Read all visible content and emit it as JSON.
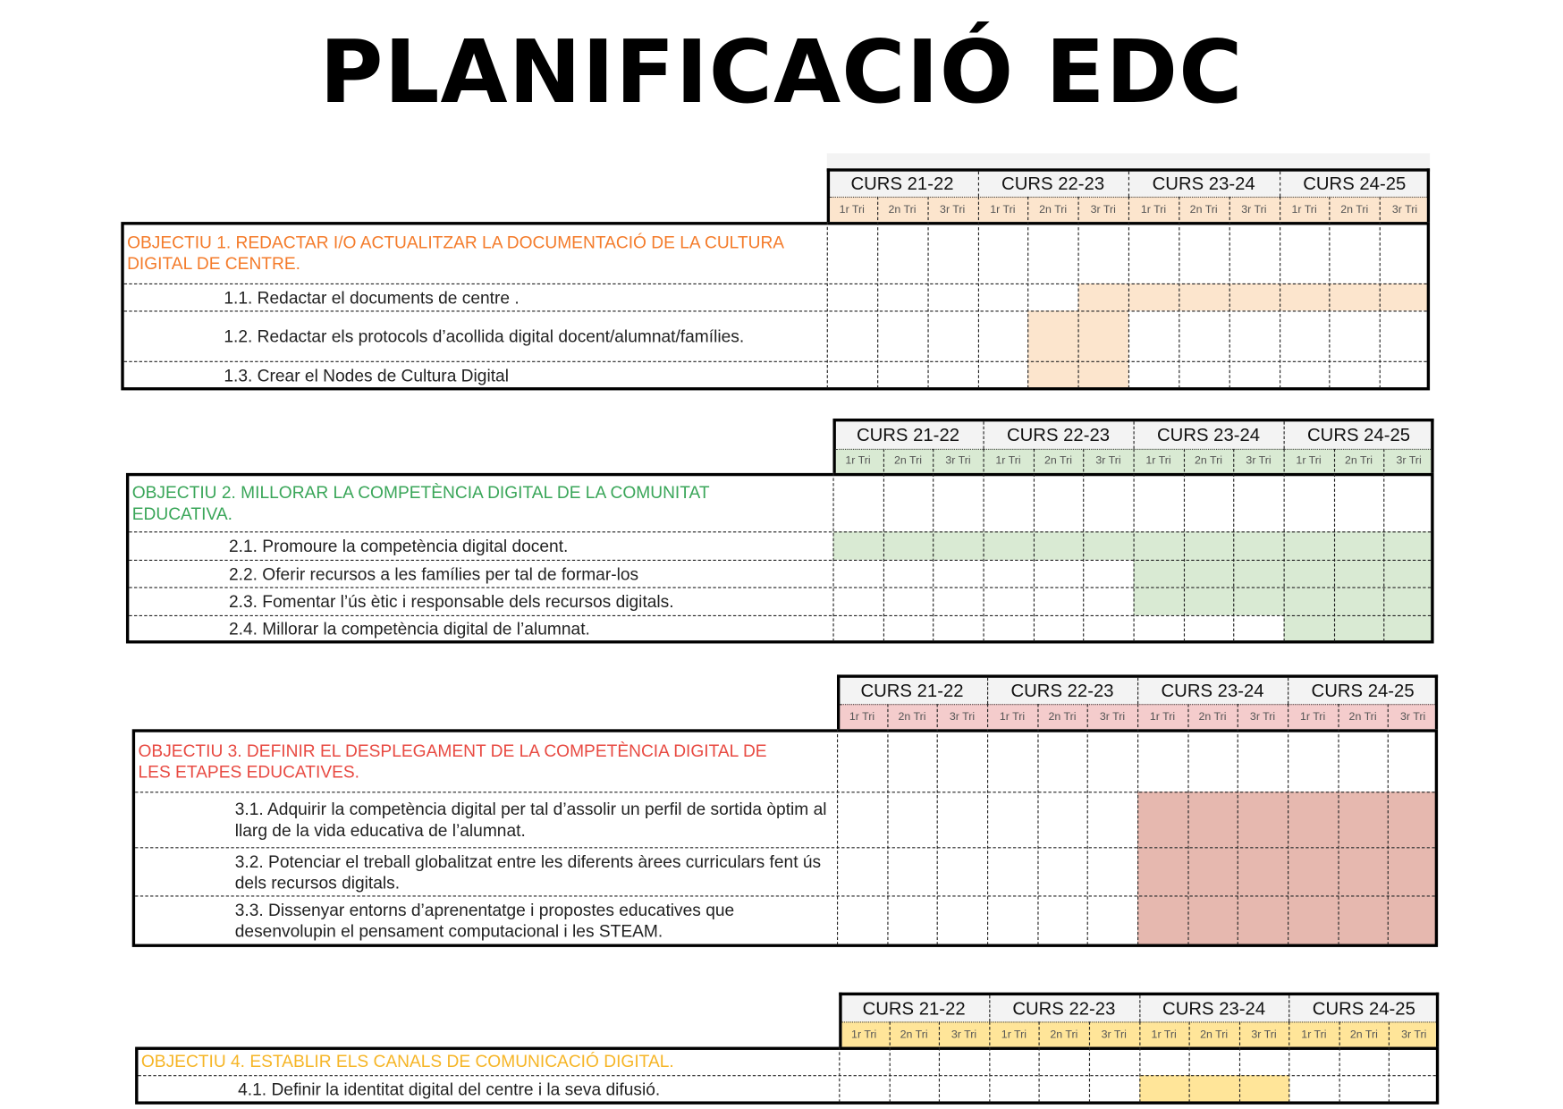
{
  "title": "PLANIFICACIÓ EDC",
  "courses": [
    "CURS 21-22",
    "CURS 22-23",
    "CURS 23-24",
    "CURS 24-25"
  ],
  "trimesters": [
    "1r Tri",
    "2n Tri",
    "3r Tri"
  ],
  "objectives": [
    {
      "title": "OBJECTIU 1. REDACTAR I/O ACTUALITZAR LA DOCUMENTACIÓ DE LA CULTURA DIGITAL DE CENTRE.",
      "text_color": "#f47b2a",
      "fill_color": "#fce5cd",
      "items": [
        {
          "label": "1.1. Redactar el documents de centre .",
          "schedule": [
            0,
            0,
            0,
            0,
            0,
            1,
            1,
            1,
            1,
            1,
            1,
            1
          ]
        },
        {
          "label": "1.2. Redactar els protocols d’acollida digital docent/alumnat/famílies.",
          "schedule": [
            0,
            0,
            0,
            0,
            1,
            1,
            0,
            0,
            0,
            0,
            0,
            0
          ]
        },
        {
          "label": "1.3. Crear el Nodes de Cultura Digital",
          "schedule": [
            0,
            0,
            0,
            0,
            1,
            1,
            0,
            0,
            0,
            0,
            0,
            0
          ]
        }
      ]
    },
    {
      "title": "OBJECTIU 2. MILLORAR LA COMPETÈNCIA DIGITAL DE LA COMUNITAT EDUCATIVA.",
      "text_color": "#3aa659",
      "fill_color": "#d9ead3",
      "items": [
        {
          "label": "2.1. Promoure la competència digital docent.",
          "schedule": [
            1,
            1,
            1,
            1,
            1,
            1,
            1,
            1,
            1,
            1,
            1,
            1
          ]
        },
        {
          "label": "2.2. Oferir recursos a les famílies per tal de formar-los",
          "schedule": [
            0,
            0,
            0,
            0,
            0,
            0,
            1,
            1,
            1,
            1,
            1,
            1
          ]
        },
        {
          "label": "2.3. Fomentar l’ús ètic i responsable dels recursos digitals.",
          "schedule": [
            0,
            0,
            0,
            0,
            0,
            0,
            1,
            1,
            1,
            1,
            1,
            1
          ]
        },
        {
          "label": "2.4. Millorar la competència digital de l’alumnat.",
          "schedule": [
            0,
            0,
            0,
            0,
            0,
            0,
            0,
            0,
            0,
            1,
            1,
            1
          ]
        }
      ]
    },
    {
      "title": "OBJECTIU 3. DEFINIR EL DESPLEGAMENT DE LA COMPETÈNCIA DIGITAL DE LES ETAPES EDUCATIVES.",
      "text_color": "#e84a42",
      "fill_color": "#e6b8af",
      "header_fill": "#f4cccc",
      "items": [
        {
          "label": "3.1. Adquirir la competència digital  per tal d’assolir un perfil de sortida òptim al llarg de la vida educativa de l’alumnat.",
          "schedule": [
            0,
            0,
            0,
            0,
            0,
            0,
            1,
            1,
            1,
            1,
            1,
            1
          ]
        },
        {
          "label": "3.2. Potenciar el treball globalitzat entre les diferents àrees curriculars fent ús dels recursos digitals.",
          "schedule": [
            0,
            0,
            0,
            0,
            0,
            0,
            1,
            1,
            1,
            1,
            1,
            1
          ]
        },
        {
          "label": "3.3. Dissenyar entorns d’aprenentatge i propostes educatives que desenvolupin el pensament computacional i les STEAM.",
          "schedule": [
            0,
            0,
            0,
            0,
            0,
            0,
            1,
            1,
            1,
            1,
            1,
            1
          ]
        }
      ]
    },
    {
      "title": "OBJECTIU 4. ESTABLIR ELS CANALS DE COMUNICACIÓ DIGITAL.",
      "text_color": "#f6b526",
      "fill_color": "#ffe599",
      "items": [
        {
          "label": "4.1. Definir la identitat digital del centre i la seva difusió.",
          "schedule": [
            0,
            0,
            0,
            0,
            0,
            0,
            1,
            1,
            1,
            0,
            0,
            0
          ]
        }
      ]
    }
  ]
}
